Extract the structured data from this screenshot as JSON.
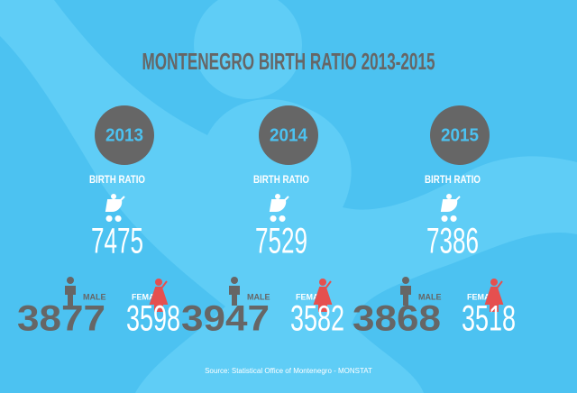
{
  "title": "MONTENEGRO BIRTH RATIO 2013-2015",
  "years": [
    {
      "year": "2013",
      "label": "BIRTH RATIO",
      "total": 7475,
      "male_label": "MALE",
      "male": 3877,
      "female_label": "FEMALE",
      "female": 3598
    },
    {
      "year": "2014",
      "label": "BIRTH RATIO",
      "total": 7529,
      "male_label": "MALE",
      "male": 3947,
      "female_label": "FEMALE",
      "female": 3582
    },
    {
      "year": "2015",
      "label": "BIRTH RATIO",
      "total": 7386,
      "male_label": "MALE",
      "male": 3868,
      "female_label": "FEMALE",
      "female": 3518
    }
  ],
  "source": "Source: Statistical Office of Montenegro - MONSTAT"
}
